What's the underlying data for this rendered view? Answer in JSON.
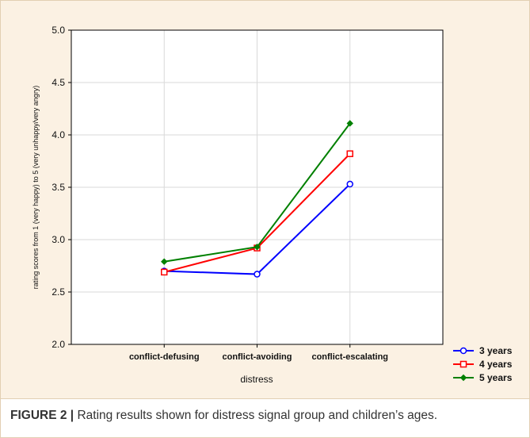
{
  "caption": {
    "label": "FIGURE 2 |",
    "text": " Rating results shown for distress signal group and children’s ages."
  },
  "chart_data": {
    "type": "line",
    "categories": [
      "conflict-defusing",
      "conflict-avoiding",
      "conflict-escalating"
    ],
    "xlabel": "distress",
    "ylabel": "rating scores from 1 (very happy) to 5 (very unhappy/very angry)",
    "ylim": [
      2.0,
      5.0
    ],
    "yticks": [
      "2.0",
      "2.5",
      "3.0",
      "3.5",
      "4.0",
      "4.5",
      "5.0"
    ],
    "grid": true,
    "legend_position": "bottom-right outside",
    "series": [
      {
        "name": "3 years",
        "values": [
          2.7,
          2.67,
          3.53
        ],
        "color": "#0000ff",
        "marker": "circle"
      },
      {
        "name": "4 years",
        "values": [
          2.69,
          2.92,
          3.82
        ],
        "color": "#ff0000",
        "marker": "square"
      },
      {
        "name": "5 years",
        "values": [
          2.79,
          2.93,
          4.11
        ],
        "color": "#008000",
        "marker": "diamond"
      }
    ]
  }
}
